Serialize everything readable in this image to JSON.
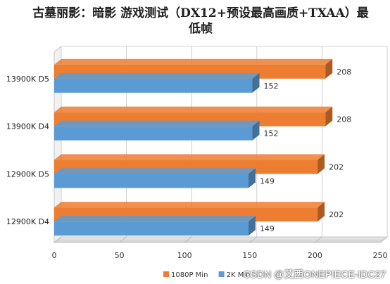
{
  "chart_data": {
    "type": "bar",
    "orientation": "horizontal",
    "title": "古墓丽影：暗影 游戏测试（DX12+预设最高画质+TXAA）最低帧",
    "categories": [
      "13900K D5",
      "13900K D4",
      "12900K D5",
      "12900K D4"
    ],
    "series": [
      {
        "name": "1080P Min",
        "values": [
          208,
          208,
          202,
          202
        ],
        "color": "#ED7D31"
      },
      {
        "name": "2K Min",
        "values": [
          152,
          152,
          149,
          149
        ],
        "color": "#5B9BD5"
      }
    ],
    "xlim": [
      0,
      250
    ],
    "xticks": [
      "0",
      "50",
      "100",
      "150",
      "200",
      "250"
    ],
    "grid": true,
    "legend_position": "bottom"
  },
  "watermark": "CSDN @艾西ONEPIECE-IDC27"
}
